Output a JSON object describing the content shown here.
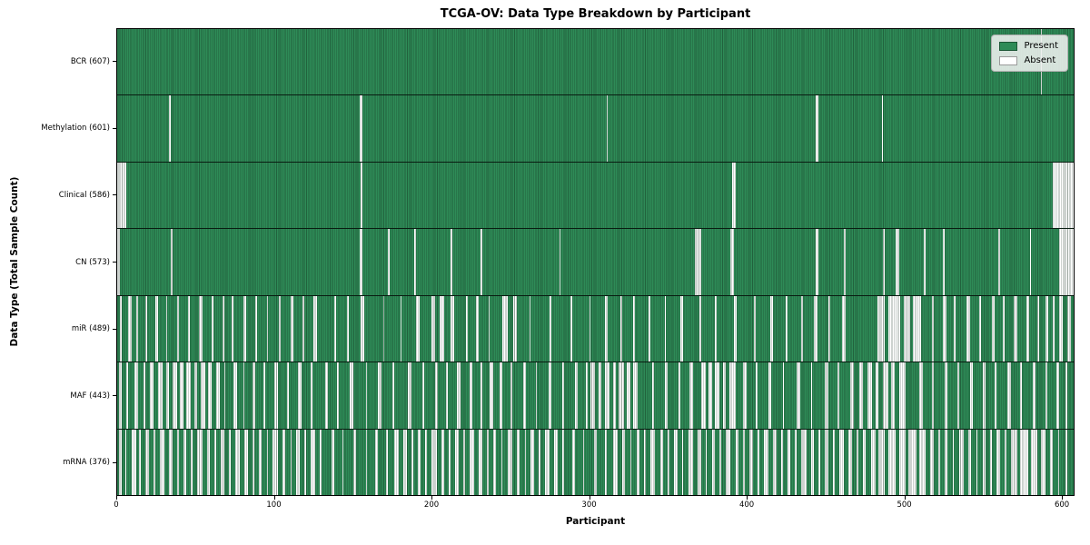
{
  "figure": {
    "title": "TCGA-OV: Data Type Breakdown by Participant",
    "xlabel": "Participant",
    "ylabel": "Data Type (Total Sample Count)",
    "legend": {
      "present_label": "Present",
      "absent_label": "Absent"
    },
    "colors": {
      "present": "#2e8b57",
      "absent": "#ffffff",
      "bar_edge": "rgba(15,40,25,0.42)",
      "background": "#ffffff"
    }
  },
  "chart_data": {
    "type": "heatmap",
    "title": "TCGA-OV: Data Type Breakdown by Participant",
    "xlabel": "Participant",
    "ylabel": "Data Type (Total Sample Count)",
    "legend": [
      "Present",
      "Absent"
    ],
    "legend_position": "upper right",
    "grid": false,
    "n_participants": 608,
    "x_ticks": [
      0,
      100,
      200,
      300,
      400,
      500,
      600
    ],
    "xlim": [
      0,
      608
    ],
    "rows": [
      {
        "label": "BCR (607)",
        "name": "BCR",
        "total_present": 607,
        "absent_runs": [
          [
            587,
            1
          ]
        ]
      },
      {
        "label": "Methylation (601)",
        "name": "Methylation",
        "total_present": 601,
        "absent_runs": [
          [
            33,
            1
          ],
          [
            154,
            2
          ],
          [
            311,
            1
          ],
          [
            444,
            2
          ],
          [
            486,
            1
          ]
        ]
      },
      {
        "label": "Clinical (586)",
        "name": "Clinical",
        "total_present": 586,
        "absent_runs": [
          [
            0,
            6
          ],
          [
            155,
            1
          ],
          [
            391,
            2
          ],
          [
            595,
            13
          ]
        ]
      },
      {
        "label": "CN (573)",
        "name": "CN",
        "total_present": 573,
        "absent_runs": [
          [
            0,
            2
          ],
          [
            34,
            1
          ],
          [
            154,
            2
          ],
          [
            172,
            1
          ],
          [
            189,
            1
          ],
          [
            212,
            1
          ],
          [
            231,
            1
          ],
          [
            281,
            1
          ],
          [
            367,
            4
          ],
          [
            390,
            2
          ],
          [
            444,
            2
          ],
          [
            462,
            1
          ],
          [
            487,
            1
          ],
          [
            495,
            2
          ],
          [
            513,
            1
          ],
          [
            525,
            1
          ],
          [
            560,
            1
          ],
          [
            580,
            1
          ],
          [
            599,
            9
          ]
        ]
      },
      {
        "label": "miR (489)",
        "name": "miR",
        "total_present": 489,
        "absent_runs": [
          [
            2,
            1
          ],
          [
            7,
            2
          ],
          [
            12,
            1
          ],
          [
            18,
            1
          ],
          [
            24,
            2
          ],
          [
            31,
            1
          ],
          [
            38,
            1
          ],
          [
            45,
            1
          ],
          [
            52,
            2
          ],
          [
            60,
            1
          ],
          [
            67,
            1
          ],
          [
            73,
            1
          ],
          [
            80,
            2
          ],
          [
            88,
            1
          ],
          [
            95,
            1
          ],
          [
            103,
            1
          ],
          [
            110,
            2
          ],
          [
            118,
            1
          ],
          [
            125,
            2
          ],
          [
            138,
            1
          ],
          [
            146,
            1
          ],
          [
            155,
            2
          ],
          [
            169,
            1
          ],
          [
            180,
            1
          ],
          [
            190,
            2
          ],
          [
            200,
            2
          ],
          [
            205,
            3
          ],
          [
            212,
            2
          ],
          [
            222,
            1
          ],
          [
            228,
            2
          ],
          [
            236,
            1
          ],
          [
            245,
            3
          ],
          [
            252,
            2
          ],
          [
            262,
            1
          ],
          [
            275,
            1
          ],
          [
            288,
            1
          ],
          [
            300,
            1
          ],
          [
            310,
            2
          ],
          [
            320,
            1
          ],
          [
            328,
            1
          ],
          [
            338,
            1
          ],
          [
            348,
            1
          ],
          [
            358,
            2
          ],
          [
            370,
            1
          ],
          [
            380,
            1
          ],
          [
            392,
            2
          ],
          [
            405,
            1
          ],
          [
            415,
            2
          ],
          [
            425,
            1
          ],
          [
            435,
            1
          ],
          [
            443,
            2
          ],
          [
            452,
            1
          ],
          [
            461,
            2
          ],
          [
            483,
            5
          ],
          [
            490,
            8
          ],
          [
            500,
            4
          ],
          [
            506,
            5
          ],
          [
            518,
            1
          ],
          [
            525,
            2
          ],
          [
            532,
            1
          ],
          [
            540,
            2
          ],
          [
            548,
            1
          ],
          [
            556,
            2
          ],
          [
            563,
            1
          ],
          [
            570,
            2
          ],
          [
            578,
            2
          ],
          [
            585,
            1
          ],
          [
            590,
            2
          ],
          [
            595,
            1
          ],
          [
            599,
            2
          ],
          [
            604,
            2
          ]
        ]
      },
      {
        "label": "MAF (443)",
        "name": "MAF",
        "total_present": 443,
        "absent_runs": [
          [
            1,
            2
          ],
          [
            6,
            1
          ],
          [
            11,
            2
          ],
          [
            17,
            1
          ],
          [
            21,
            2
          ],
          [
            26,
            3
          ],
          [
            31,
            2
          ],
          [
            35,
            3
          ],
          [
            40,
            2
          ],
          [
            44,
            3
          ],
          [
            49,
            2
          ],
          [
            53,
            3
          ],
          [
            58,
            2
          ],
          [
            63,
            2
          ],
          [
            68,
            1
          ],
          [
            74,
            2
          ],
          [
            80,
            1
          ],
          [
            86,
            2
          ],
          [
            93,
            1
          ],
          [
            100,
            2
          ],
          [
            108,
            1
          ],
          [
            115,
            2
          ],
          [
            123,
            1
          ],
          [
            132,
            2
          ],
          [
            140,
            1
          ],
          [
            148,
            2
          ],
          [
            158,
            1
          ],
          [
            166,
            2
          ],
          [
            175,
            1
          ],
          [
            185,
            2
          ],
          [
            194,
            1
          ],
          [
            202,
            2
          ],
          [
            209,
            1
          ],
          [
            216,
            2
          ],
          [
            224,
            2
          ],
          [
            231,
            1
          ],
          [
            237,
            2
          ],
          [
            243,
            2
          ],
          [
            250,
            1
          ],
          [
            258,
            2
          ],
          [
            266,
            1
          ],
          [
            274,
            2
          ],
          [
            283,
            1
          ],
          [
            291,
            2
          ],
          [
            298,
            1
          ],
          [
            301,
            3
          ],
          [
            306,
            2
          ],
          [
            310,
            3
          ],
          [
            315,
            2
          ],
          [
            319,
            3
          ],
          [
            324,
            2
          ],
          [
            328,
            3
          ],
          [
            340,
            1
          ],
          [
            348,
            2
          ],
          [
            357,
            1
          ],
          [
            364,
            2
          ],
          [
            371,
            3
          ],
          [
            376,
            2
          ],
          [
            380,
            3
          ],
          [
            385,
            2
          ],
          [
            389,
            4
          ],
          [
            398,
            2
          ],
          [
            406,
            1
          ],
          [
            414,
            2
          ],
          [
            423,
            1
          ],
          [
            432,
            2
          ],
          [
            441,
            1
          ],
          [
            450,
            2
          ],
          [
            458,
            1
          ],
          [
            466,
            2
          ],
          [
            472,
            2
          ],
          [
            477,
            3
          ],
          [
            482,
            2
          ],
          [
            487,
            3
          ],
          [
            492,
            2
          ],
          [
            497,
            4
          ],
          [
            510,
            2
          ],
          [
            518,
            1
          ],
          [
            526,
            2
          ],
          [
            534,
            1
          ],
          [
            542,
            2
          ],
          [
            550,
            2
          ],
          [
            558,
            1
          ],
          [
            566,
            2
          ],
          [
            574,
            1
          ],
          [
            582,
            2
          ],
          [
            590,
            1
          ],
          [
            597,
            2
          ],
          [
            603,
            1
          ]
        ]
      },
      {
        "label": "mRNA (376)",
        "name": "mRNA",
        "total_present": 376,
        "absent_runs": [
          [
            1,
            2
          ],
          [
            5,
            1
          ],
          [
            9,
            3
          ],
          [
            14,
            1
          ],
          [
            18,
            2
          ],
          [
            23,
            1
          ],
          [
            27,
            3
          ],
          [
            33,
            2
          ],
          [
            38,
            1
          ],
          [
            42,
            2
          ],
          [
            47,
            1
          ],
          [
            51,
            3
          ],
          [
            57,
            2
          ],
          [
            62,
            1
          ],
          [
            66,
            2
          ],
          [
            71,
            1
          ],
          [
            75,
            3
          ],
          [
            81,
            2
          ],
          [
            86,
            1
          ],
          [
            90,
            2
          ],
          [
            95,
            1
          ],
          [
            99,
            3
          ],
          [
            105,
            2
          ],
          [
            110,
            1
          ],
          [
            114,
            2
          ],
          [
            119,
            1
          ],
          [
            123,
            3
          ],
          [
            129,
            1
          ],
          [
            136,
            2
          ],
          [
            143,
            1
          ],
          [
            150,
            2
          ],
          [
            158,
            1
          ],
          [
            164,
            2
          ],
          [
            171,
            1
          ],
          [
            176,
            3
          ],
          [
            182,
            2
          ],
          [
            187,
            1
          ],
          [
            191,
            2
          ],
          [
            196,
            1
          ],
          [
            200,
            3
          ],
          [
            206,
            2
          ],
          [
            211,
            1
          ],
          [
            215,
            2
          ],
          [
            220,
            1
          ],
          [
            224,
            3
          ],
          [
            230,
            2
          ],
          [
            235,
            1
          ],
          [
            239,
            2
          ],
          [
            244,
            1
          ],
          [
            248,
            3
          ],
          [
            254,
            2
          ],
          [
            259,
            1
          ],
          [
            263,
            2
          ],
          [
            268,
            1
          ],
          [
            272,
            3
          ],
          [
            278,
            2
          ],
          [
            283,
            1
          ],
          [
            289,
            2
          ],
          [
            296,
            1
          ],
          [
            303,
            2
          ],
          [
            310,
            1
          ],
          [
            315,
            3
          ],
          [
            321,
            2
          ],
          [
            326,
            1
          ],
          [
            330,
            2
          ],
          [
            335,
            1
          ],
          [
            339,
            3
          ],
          [
            345,
            2
          ],
          [
            350,
            1
          ],
          [
            354,
            2
          ],
          [
            359,
            1
          ],
          [
            363,
            3
          ],
          [
            369,
            2
          ],
          [
            374,
            1
          ],
          [
            378,
            2
          ],
          [
            383,
            1
          ],
          [
            387,
            3
          ],
          [
            393,
            2
          ],
          [
            398,
            1
          ],
          [
            402,
            2
          ],
          [
            407,
            1
          ],
          [
            411,
            3
          ],
          [
            417,
            2
          ],
          [
            422,
            1
          ],
          [
            426,
            2
          ],
          [
            431,
            1
          ],
          [
            435,
            3
          ],
          [
            441,
            2
          ],
          [
            446,
            1
          ],
          [
            450,
            2
          ],
          [
            455,
            1
          ],
          [
            459,
            3
          ],
          [
            465,
            2
          ],
          [
            470,
            1
          ],
          [
            474,
            2
          ],
          [
            479,
            3
          ],
          [
            484,
            4
          ],
          [
            490,
            5
          ],
          [
            497,
            4
          ],
          [
            503,
            5
          ],
          [
            510,
            4
          ],
          [
            517,
            2
          ],
          [
            522,
            1
          ],
          [
            526,
            2
          ],
          [
            531,
            1
          ],
          [
            535,
            3
          ],
          [
            541,
            2
          ],
          [
            546,
            1
          ],
          [
            550,
            2
          ],
          [
            555,
            1
          ],
          [
            559,
            2
          ],
          [
            564,
            1
          ],
          [
            568,
            4
          ],
          [
            574,
            5
          ],
          [
            581,
            4
          ],
          [
            587,
            3
          ],
          [
            593,
            2
          ],
          [
            598,
            1
          ],
          [
            603,
            1
          ]
        ]
      }
    ]
  }
}
